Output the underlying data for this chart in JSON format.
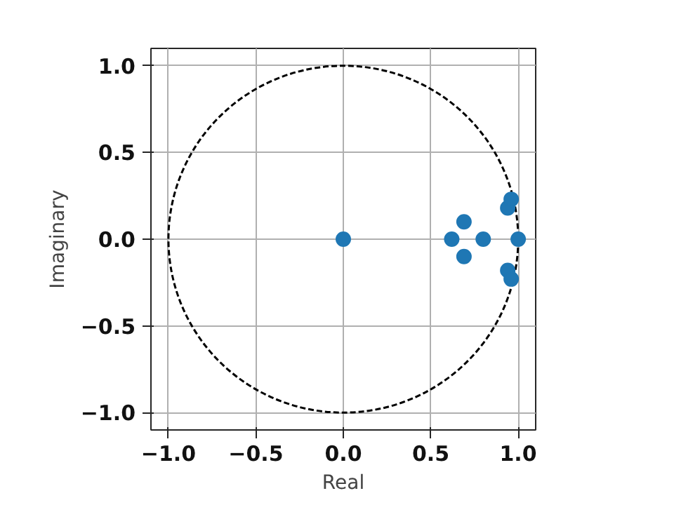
{
  "chart_data": {
    "type": "scatter",
    "xlabel": "Real",
    "ylabel": "Imaginary",
    "xlim": [
      -1.1,
      1.1
    ],
    "ylim": [
      -1.1,
      1.1
    ],
    "xticks": [
      {
        "value": -1.0,
        "label": "−1.0"
      },
      {
        "value": -0.5,
        "label": "−0.5"
      },
      {
        "value": 0.0,
        "label": "0.0"
      },
      {
        "value": 0.5,
        "label": "0.5"
      },
      {
        "value": 1.0,
        "label": "1.0"
      }
    ],
    "yticks": [
      {
        "value": -1.0,
        "label": "−1.0"
      },
      {
        "value": -0.5,
        "label": "−0.5"
      },
      {
        "value": 0.0,
        "label": "0.0"
      },
      {
        "value": 0.5,
        "label": "0.5"
      },
      {
        "value": 1.0,
        "label": "1.0"
      }
    ],
    "grid": true,
    "marker": "circle",
    "series": [
      {
        "color": "#1f77b4",
        "x": [
          0,
          0.62,
          0.8,
          1.0,
          0.69,
          0.69,
          0.94,
          0.96,
          0.94,
          0.96
        ],
        "values": [
          0,
          0,
          0,
          0,
          0.1,
          -0.1,
          0.18,
          0.23,
          -0.18,
          -0.23
        ]
      }
    ]
  }
}
